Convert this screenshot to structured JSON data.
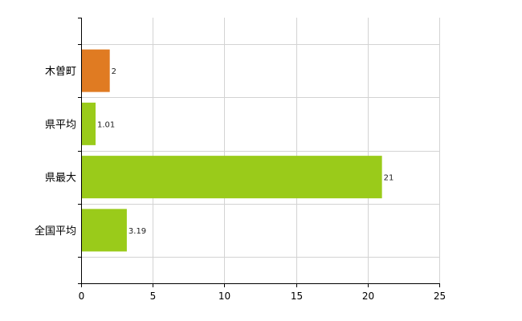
{
  "chart_data": {
    "type": "bar",
    "orientation": "horizontal",
    "categories": [
      "木曽町",
      "県平均",
      "県最大",
      "全国平均"
    ],
    "values": [
      2,
      1.01,
      21,
      3.19
    ],
    "value_labels": [
      "2",
      "1.01",
      "21",
      "3.19"
    ],
    "bar_colors": [
      "#e07b22",
      "#9acb1a",
      "#9acb1a",
      "#9acb1a"
    ],
    "title": "",
    "xlabel": "",
    "ylabel": "",
    "xlim": [
      0,
      25
    ],
    "xticks": [
      0,
      5,
      10,
      15,
      20,
      25
    ],
    "xtick_labels": [
      "0",
      "5",
      "10",
      "15",
      "20",
      "25"
    ],
    "grid": true,
    "legend": "none"
  },
  "colors": {
    "highlight": "#e07b22",
    "default": "#9acb1a",
    "grid": "#d3d3d3",
    "axis": "#000000"
  }
}
